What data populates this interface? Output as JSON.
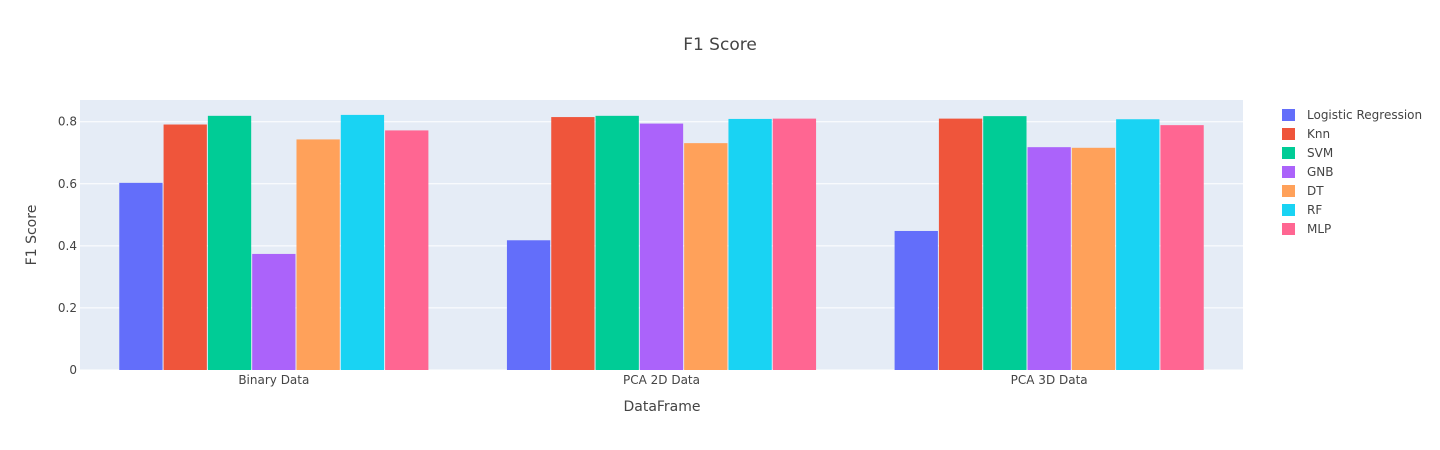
{
  "chart_data": {
    "type": "bar",
    "title": "F1 Score",
    "xlabel": "DataFrame",
    "ylabel": "F1 Score",
    "categories": [
      "Binary Data",
      "PCA 2D Data",
      "PCA 3D Data"
    ],
    "ylim": [
      0,
      0.87
    ],
    "yticks": [
      0,
      0.2,
      0.4,
      0.6,
      0.8
    ],
    "ytick_labels": [
      "0",
      "0.2",
      "0.4",
      "0.6",
      "0.8"
    ],
    "grid": true,
    "legend_position": "right",
    "series": [
      {
        "name": "Logistic Regression",
        "color": "#636efa",
        "values": [
          0.603,
          0.418,
          0.448
        ]
      },
      {
        "name": "Knn",
        "color": "#ef553b",
        "values": [
          0.791,
          0.815,
          0.81
        ]
      },
      {
        "name": "SVM",
        "color": "#00cc96",
        "values": [
          0.819,
          0.819,
          0.818
        ]
      },
      {
        "name": "GNB",
        "color": "#ab63fa",
        "values": [
          0.374,
          0.794,
          0.718
        ]
      },
      {
        "name": "DT",
        "color": "#ffa15a",
        "values": [
          0.743,
          0.731,
          0.716
        ]
      },
      {
        "name": "RF",
        "color": "#19d3f3",
        "values": [
          0.822,
          0.809,
          0.808
        ]
      },
      {
        "name": "MLP",
        "color": "#ff6692",
        "values": [
          0.772,
          0.81,
          0.789
        ]
      }
    ]
  }
}
